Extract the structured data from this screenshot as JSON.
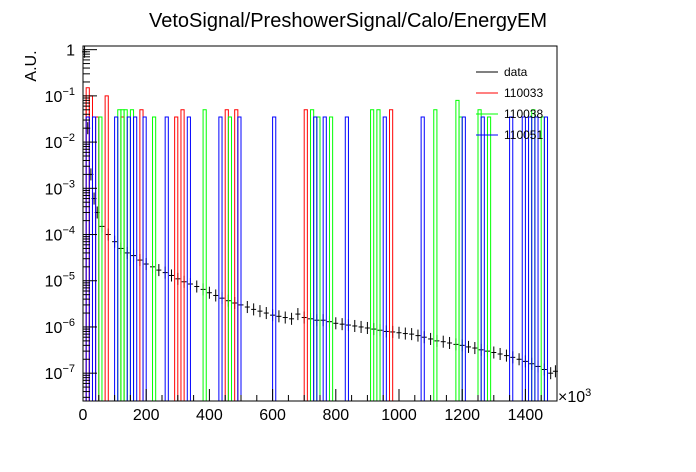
{
  "chart_data": {
    "type": "histogram",
    "title": "VetoSignal/PreshowerSignal/Calo/EnergyEM",
    "xlabel": "",
    "ylabel": "A.U.",
    "x_exponent_label": "×10",
    "x_exponent_power": "3",
    "xlim": [
      0,
      1500
    ],
    "ylim": [
      2.5e-08,
      1.2
    ],
    "yscale": "log",
    "x_ticks": [
      0,
      200,
      400,
      600,
      800,
      1000,
      1200,
      1400
    ],
    "x_tick_labels": [
      "0",
      "200",
      "400",
      "600",
      "800",
      "1000",
      "1200",
      "1400"
    ],
    "y_ticks": [
      1e-07,
      1e-06,
      1e-05,
      0.0001,
      0.001,
      0.01,
      0.1,
      1
    ],
    "y_tick_labels": [
      {
        "base": "10",
        "exp": "−7"
      },
      {
        "base": "10",
        "exp": "−6"
      },
      {
        "base": "10",
        "exp": "−5"
      },
      {
        "base": "10",
        "exp": "−4"
      },
      {
        "base": "10",
        "exp": "−3"
      },
      {
        "base": "10",
        "exp": "−2"
      },
      {
        "base": "10",
        "exp": "−1"
      },
      {
        "base": "1",
        "exp": ""
      }
    ],
    "grid": false,
    "legend_position": "top-right",
    "bin_width": 10,
    "series": [
      {
        "name": "data",
        "color": "#000000",
        "style": "points-with-errors",
        "x": [
          5,
          15,
          25,
          35,
          45,
          60,
          80,
          100,
          120,
          140,
          160,
          180,
          200,
          220,
          240,
          260,
          280,
          300,
          320,
          340,
          360,
          380,
          400,
          420,
          440,
          460,
          480,
          500,
          520,
          540,
          560,
          580,
          600,
          620,
          640,
          660,
          680,
          700,
          720,
          740,
          760,
          780,
          800,
          820,
          840,
          860,
          880,
          900,
          920,
          940,
          960,
          980,
          1000,
          1020,
          1040,
          1060,
          1080,
          1100,
          1120,
          1140,
          1160,
          1180,
          1200,
          1220,
          1240,
          1260,
          1280,
          1300,
          1320,
          1340,
          1360,
          1380,
          1400,
          1420,
          1440,
          1460,
          1480,
          1495
        ],
        "y": [
          0.9,
          0.02,
          0.002,
          0.0006,
          0.0003,
          0.00015,
          0.0001,
          7e-05,
          5e-05,
          4e-05,
          3.5e-05,
          2.8e-05,
          2.3e-05,
          2e-05,
          1.7e-05,
          1.5e-05,
          1.3e-05,
          1.1e-05,
          9.5e-06,
          8.5e-06,
          7.5e-06,
          6.5e-06,
          5.5e-06,
          4.8e-06,
          4.2e-06,
          3.7e-06,
          3.3e-06,
          3e-06,
          2.7e-06,
          2.4e-06,
          2.2e-06,
          2e-06,
          1.8e-06,
          1.7e-06,
          1.6e-06,
          1.5e-06,
          1.9e-06,
          1.6e-06,
          1.5e-06,
          1.4e-06,
          1.4e-06,
          1.3e-06,
          1.2e-06,
          1.15e-06,
          1.1e-06,
          1.05e-06,
          1e-06,
          9.5e-07,
          9e-07,
          8.5e-07,
          8e-07,
          7.8e-07,
          7.5e-07,
          7.2e-07,
          7e-07,
          6.5e-07,
          6e-07,
          5.5e-07,
          5e-07,
          4.8e-07,
          4.5e-07,
          4.2e-07,
          4e-07,
          3.7e-07,
          3.5e-07,
          3.2e-07,
          3e-07,
          2.8e-07,
          2.6e-07,
          2.4e-07,
          2.2e-07,
          2e-07,
          1.8e-07,
          1.6e-07,
          1.4e-07,
          1.2e-07,
          1e-07,
          1.1e-07
        ]
      },
      {
        "name": "110033",
        "color": "#ff0000",
        "style": "step-bins",
        "x": [
          0,
          10,
          20,
          40,
          70,
          120,
          180,
          290,
          310,
          450,
          480,
          700,
          970
        ],
        "y": [
          0.1,
          0.15,
          0.1,
          0.035,
          0.1,
          0.035,
          0.05,
          0.035,
          0.05,
          0.05,
          0.05,
          0.05,
          0.05
        ]
      },
      {
        "name": "110038",
        "color": "#00ff00",
        "style": "step-bins",
        "x": [
          50,
          110,
          120,
          130,
          150,
          220,
          380,
          460,
          720,
          740,
          780,
          910,
          930,
          1110,
          1180,
          1190,
          1250,
          1280,
          1420,
          1450
        ],
        "y": [
          0.035,
          0.05,
          0.05,
          0.05,
          0.05,
          0.035,
          0.05,
          0.035,
          0.05,
          0.035,
          0.035,
          0.05,
          0.05,
          0.05,
          0.08,
          0.035,
          0.05,
          0.035,
          0.05,
          0.035
        ]
      },
      {
        "name": "110051",
        "color": "#0000ff",
        "style": "step-bins",
        "x": [
          10,
          30,
          100,
          140,
          160,
          190,
          260,
          330,
          430,
          490,
          600,
          730,
          760,
          830,
          950,
          1070,
          1200,
          1260,
          1350,
          1390,
          1410,
          1430,
          1460
        ],
        "y": [
          0.035,
          0.035,
          0.035,
          0.035,
          0.035,
          0.035,
          0.035,
          0.035,
          0.035,
          0.035,
          0.035,
          0.035,
          0.035,
          0.035,
          0.035,
          0.035,
          0.035,
          0.035,
          0.035,
          0.035,
          0.035,
          0.035,
          0.035
        ]
      }
    ]
  }
}
